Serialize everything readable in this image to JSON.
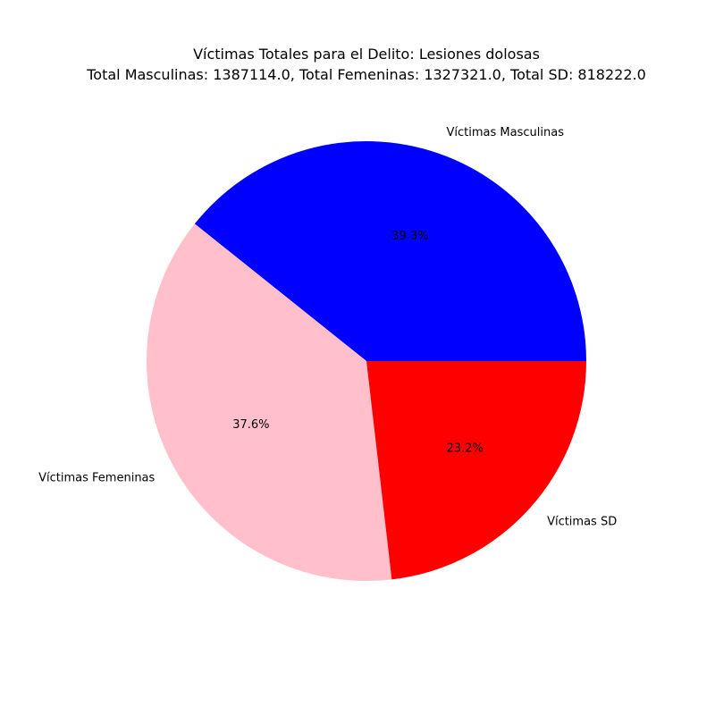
{
  "chart_data": {
    "type": "pie",
    "title": "Víctimas Totales para el Delito: Lesiones dolosas",
    "subtitle": "Total Masculinas: 1387114.0, Total Femeninas: 1327321.0, Total SD: 818222.0",
    "slices": [
      {
        "label": "Víctimas Masculinas",
        "value": 1387114.0,
        "percent_label": "39.3%",
        "color": "#0000ff"
      },
      {
        "label": "Víctimas Femeninas",
        "value": 1327321.0,
        "percent_label": "37.6%",
        "color": "#ffc0cb"
      },
      {
        "label": "Víctimas SD",
        "value": 818222.0,
        "percent_label": "23.2%",
        "color": "#ff0000"
      }
    ],
    "start_angle_deg": 0,
    "direction": "counterclockwise",
    "legend": "none"
  }
}
